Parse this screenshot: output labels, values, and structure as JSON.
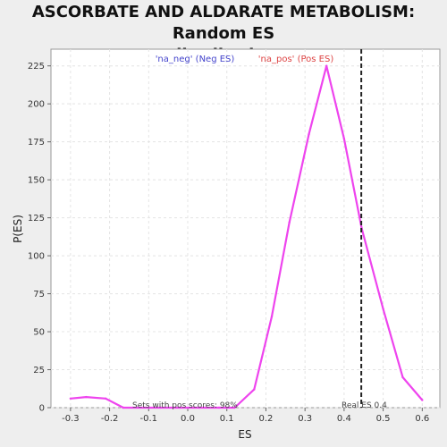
{
  "chart_data": {
    "type": "line",
    "title_line1": "ASCORBATE AND ALDARATE METABOLISM: Random ES",
    "title_line2": "distribution",
    "xlabel": "ES",
    "ylabel": "P(ES)",
    "xlim": [
      -0.35,
      0.645
    ],
    "ylim": [
      0,
      236
    ],
    "x_ticks": [
      -0.3,
      -0.2,
      -0.1,
      0.0,
      0.1,
      0.2,
      0.3,
      0.4,
      0.5,
      0.6
    ],
    "x_tick_labels": [
      "-0.3",
      "-0.2",
      "-0.1",
      "0.0",
      "0.1",
      "0.2",
      "0.3",
      "0.4",
      "0.5",
      "0.6"
    ],
    "y_ticks": [
      0,
      25,
      50,
      75,
      100,
      125,
      150,
      175,
      200,
      225
    ],
    "y_tick_labels": [
      "0",
      "25",
      "50",
      "75",
      "100",
      "125",
      "150",
      "175",
      "200",
      "225"
    ],
    "grid": true,
    "series": [
      {
        "color": "#ee44ee",
        "x": [
          -0.3,
          -0.26,
          -0.21,
          -0.165,
          -0.12,
          -0.07,
          -0.02,
          0.03,
          0.08,
          0.12,
          0.17,
          0.215,
          0.26,
          0.31,
          0.355,
          0.4,
          0.445,
          0.5,
          0.55,
          0.6
        ],
        "y": [
          6,
          7,
          6,
          0,
          0,
          0,
          0,
          0,
          0,
          0,
          12,
          60,
          122,
          180,
          225,
          177,
          118,
          65,
          20,
          5
        ]
      }
    ],
    "real_es": 0.444,
    "legend": {
      "neg_label": "'na_neg' (Neg ES)",
      "pos_label": "'na_pos' (Pos ES)",
      "neg_color": "#4444cc",
      "pos_color": "#dd4444"
    },
    "annotations": {
      "pos_scores": "Sets with pos scores: 98%",
      "real_es": "Real ES 0.4"
    }
  }
}
